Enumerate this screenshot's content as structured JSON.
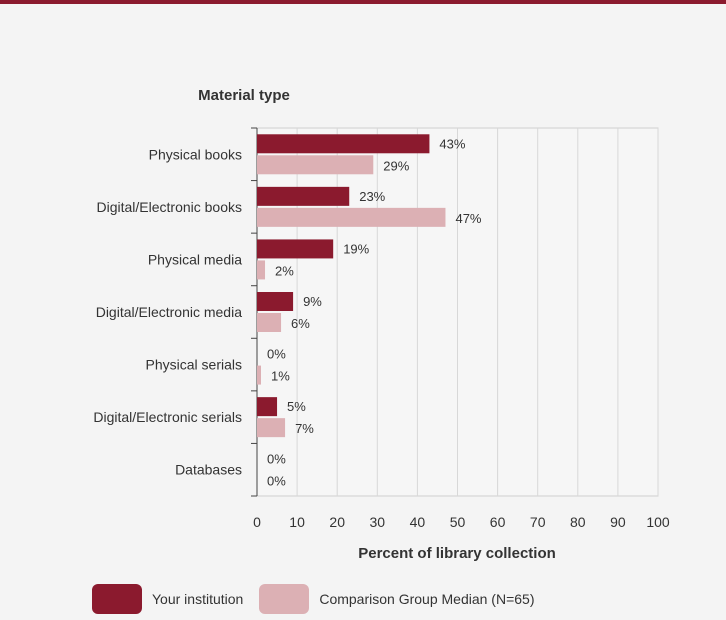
{
  "chart_data": {
    "type": "bar",
    "orientation": "horizontal",
    "title": "Material type",
    "categories": [
      "Physical books",
      "Digital/Electronic books",
      "Physical media",
      "Digital/Electronic media",
      "Physical serials",
      "Digital/Electronic serials",
      "Databases"
    ],
    "series": [
      {
        "name": "Your institution",
        "color": "#8b1a2e",
        "values": [
          43,
          23,
          19,
          9,
          0,
          5,
          0
        ],
        "labels": [
          "43%",
          "23%",
          "19%",
          "9%",
          "0%",
          "5%",
          "0%"
        ]
      },
      {
        "name": "Comparison Group Median (N=65)",
        "color": "#dcb0b4",
        "values": [
          29,
          47,
          2,
          6,
          1,
          7,
          0
        ],
        "labels": [
          "29%",
          "47%",
          "2%",
          "6%",
          "1%",
          "7%",
          "0%"
        ]
      }
    ],
    "xlabel": "Percent of library collection",
    "xlim": [
      0,
      100
    ],
    "xticks": [
      "0",
      "10",
      "20",
      "30",
      "40",
      "50",
      "60",
      "70",
      "80",
      "90",
      "100"
    ],
    "grid": true,
    "legend_position": "bottom"
  }
}
